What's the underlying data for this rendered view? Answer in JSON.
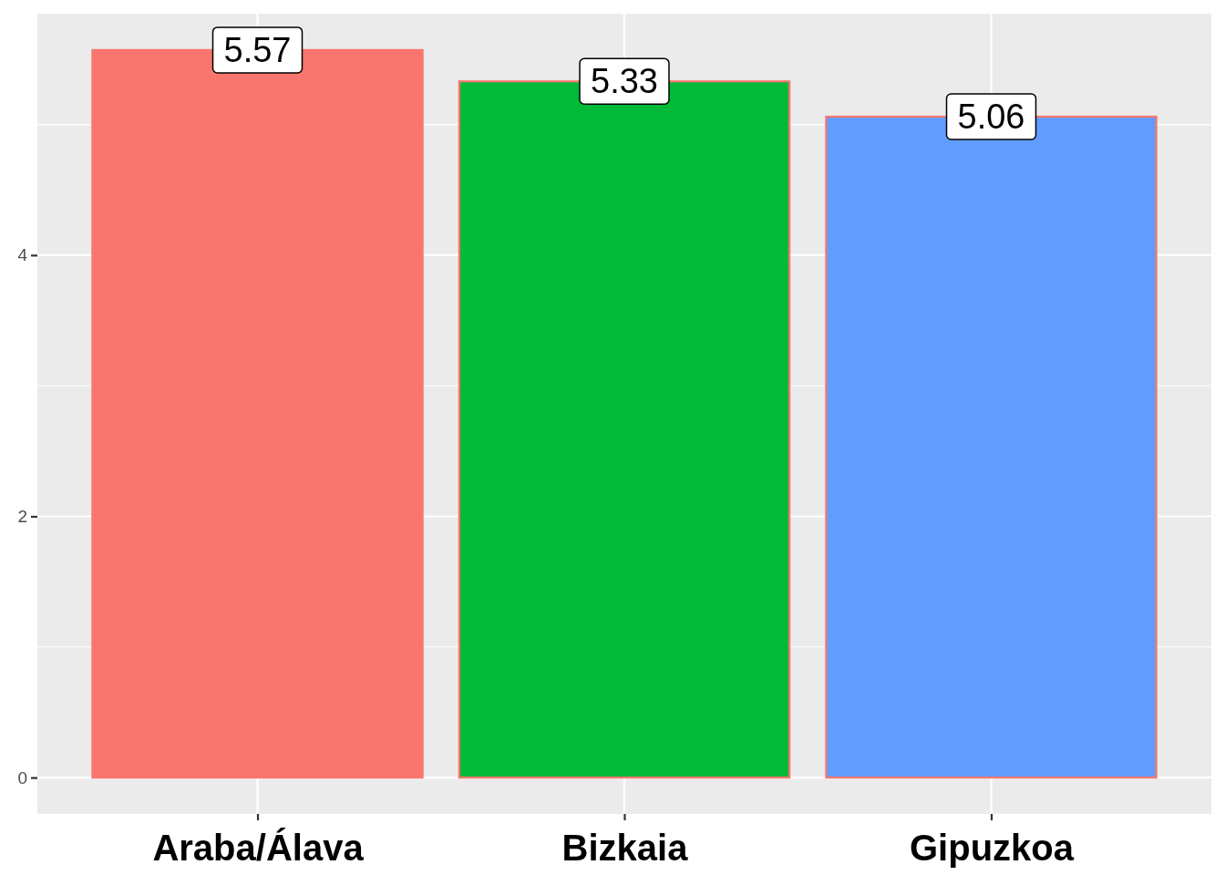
{
  "chart_data": {
    "type": "bar",
    "categories": [
      "Araba/Álava",
      "Bizkaia",
      "Gipuzkoa"
    ],
    "values": [
      5.57,
      5.33,
      5.06
    ],
    "colors": [
      "#f8766d",
      "#00ba38",
      "#619cff"
    ],
    "ylim": [
      -0.2785,
      5.8485
    ],
    "yticks": [
      0,
      2,
      4
    ],
    "grid": true,
    "data_labels": true
  }
}
